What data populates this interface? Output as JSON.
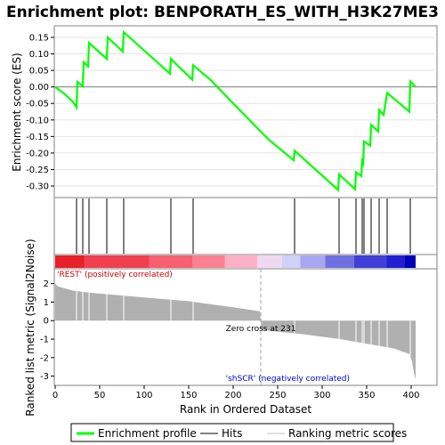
{
  "chart_data": {
    "title": "Enrichment plot: BENPORATH_ES_WITH_H3K27ME3",
    "type": "line",
    "x_range": [
      0,
      420
    ],
    "es_panel": {
      "ylabel": "Enrichment score (ES)",
      "ylim": [
        -0.335,
        0.185
      ],
      "yticks": [
        0.15,
        0.1,
        0.05,
        0.0,
        -0.05,
        -0.1,
        -0.15,
        -0.2,
        -0.25,
        -0.3
      ],
      "ytick_labels": [
        "0.15",
        "0.10",
        "0.05",
        "0.00",
        "-0.05",
        "-0.10",
        "-0.15",
        "-0.20",
        "-0.25",
        "-0.30"
      ],
      "series": {
        "name": "Enrichment profile",
        "color": "#00ff00",
        "points": [
          [
            0,
            0.0
          ],
          [
            10,
            -0.02
          ],
          [
            20,
            -0.045
          ],
          [
            24,
            -0.062
          ],
          [
            25,
            0.015
          ],
          [
            31,
            0.002
          ],
          [
            32,
            0.075
          ],
          [
            37,
            0.062
          ],
          [
            38,
            0.133
          ],
          [
            58,
            0.085
          ],
          [
            59,
            0.15
          ],
          [
            76,
            0.107
          ],
          [
            77,
            0.166
          ],
          [
            129,
            0.04
          ],
          [
            130,
            0.085
          ],
          [
            154,
            0.022
          ],
          [
            155,
            0.066
          ],
          [
            175,
            0.02
          ],
          [
            200,
            -0.05
          ],
          [
            240,
            -0.16
          ],
          [
            268,
            -0.222
          ],
          [
            269,
            -0.193
          ],
          [
            318,
            -0.312
          ],
          [
            319,
            -0.265
          ],
          [
            337,
            -0.31
          ],
          [
            338,
            -0.258
          ],
          [
            344,
            -0.27
          ],
          [
            345,
            -0.215
          ],
          [
            346,
            -0.24
          ],
          [
            347,
            -0.165
          ],
          [
            354,
            -0.178
          ],
          [
            355,
            -0.115
          ],
          [
            363,
            -0.135
          ],
          [
            364,
            -0.07
          ],
          [
            369,
            -0.085
          ],
          [
            373,
            -0.018
          ],
          [
            398,
            -0.075
          ],
          [
            399,
            0.017
          ],
          [
            405,
            0.0
          ]
        ]
      }
    },
    "hits": [
      24,
      31,
      38,
      58,
      77,
      130,
      155,
      269,
      319,
      338,
      345,
      347,
      355,
      364,
      373,
      399
    ],
    "metric_panel": {
      "ylabel": "Ranked list metric (Signal2Noise)",
      "xlabel": "Rank in Ordered Dataset",
      "ylim": [
        -3.5,
        2.8
      ],
      "yticks": [
        2,
        1,
        0,
        -1,
        -2,
        -3
      ],
      "ytick_labels": [
        "2",
        "1",
        "0",
        "-1",
        "-2",
        "-3"
      ],
      "xticks": [
        0,
        50,
        100,
        150,
        200,
        250,
        300,
        350,
        400
      ],
      "xtick_labels": [
        "0",
        "50",
        "100",
        "150",
        "200",
        "250",
        "300",
        "350",
        "400"
      ],
      "profile": [
        [
          0,
          2.0
        ],
        [
          3,
          1.85
        ],
        [
          10,
          1.75
        ],
        [
          20,
          1.62
        ],
        [
          40,
          1.5
        ],
        [
          60,
          1.42
        ],
        [
          100,
          1.25
        ],
        [
          150,
          1.05
        ],
        [
          200,
          0.72
        ],
        [
          230,
          0.5
        ],
        [
          231,
          0.0
        ],
        [
          232,
          -0.5
        ],
        [
          280,
          -0.75
        ],
        [
          320,
          -1.0
        ],
        [
          350,
          -1.25
        ],
        [
          380,
          -1.5
        ],
        [
          398,
          -1.8
        ],
        [
          401,
          -2.2
        ],
        [
          403,
          -2.8
        ],
        [
          405,
          -3.2
        ]
      ],
      "zero_cross_label": "Zero cross at 231",
      "zero_cross_rank": 231,
      "pos_label": "'REST' (positively correlated)",
      "neg_label": "'shSCR' (negatively correlated)"
    },
    "legend": [
      {
        "label": "Enrichment profile",
        "color": "#00ff00",
        "style": "thick-line"
      },
      {
        "label": "Hits",
        "color": "#000000",
        "style": "line"
      },
      {
        "label": "Ranking metric scores",
        "color": "#c0c0c0",
        "style": "line"
      }
    ],
    "colorbar": [
      "#e8202a",
      "#f04050",
      "#f66070",
      "#fb8090",
      "#fdb0c8",
      "#f0d8f0",
      "#d0d0f8",
      "#a8a8f0",
      "#7070e0",
      "#4040d8",
      "#2020d0",
      "#0000b8"
    ],
    "colorbar_stops": [
      0,
      0.08,
      0.26,
      0.38,
      0.47,
      0.56,
      0.63,
      0.68,
      0.75,
      0.83,
      0.92,
      0.97,
      1
    ]
  }
}
